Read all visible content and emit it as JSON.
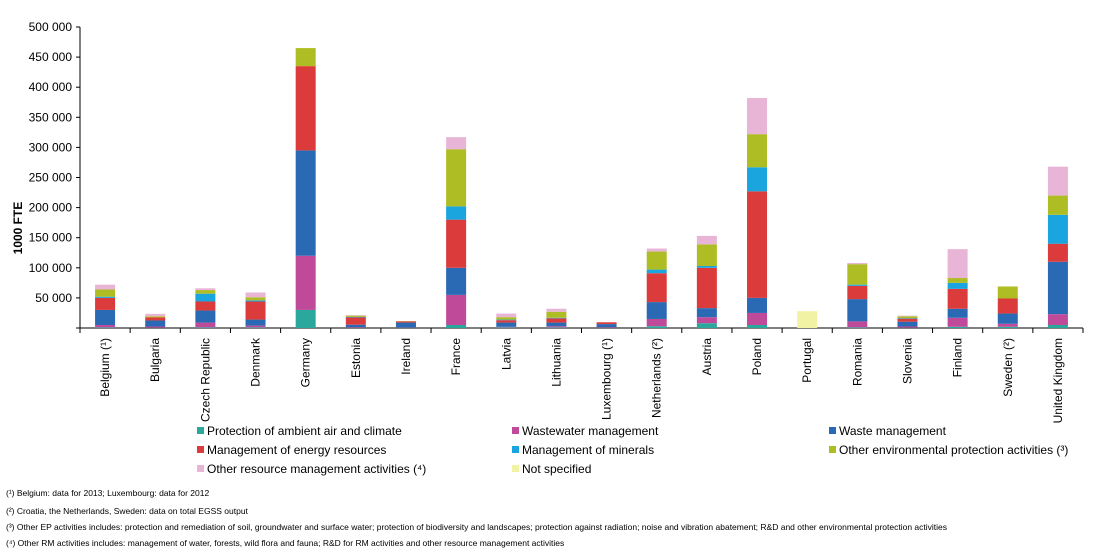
{
  "chart_data": {
    "type": "bar",
    "stacked": true,
    "ylabel": "1000 FTE",
    "ylim": [
      0,
      500000
    ],
    "y_ticks": [
      0,
      50000,
      100000,
      150000,
      200000,
      250000,
      300000,
      350000,
      400000,
      450000,
      500000
    ],
    "y_tick_labels": [
      "",
      "50 000",
      "100 000",
      "150 000",
      "200 000",
      "250 000",
      "300 000",
      "350 000",
      "400 000",
      "450 000",
      "500 000"
    ],
    "grid": false,
    "legend_placement": "bottom",
    "categories": [
      "Belgium (¹)",
      "Bulgaria",
      "Czech Republic",
      "Denmark",
      "Germany",
      "Estonia",
      "Ireland",
      "France",
      "Latvia",
      "Lithuania",
      "Luxembourg (¹)",
      "Netherlands (²)",
      "Austria",
      "Poland",
      "Portugal",
      "Romania",
      "Slovenia",
      "Finland",
      "Sweden (²)",
      "United Kingdom"
    ],
    "series": [
      {
        "name": "Protection of ambient air and climate",
        "color": "#2ba89c",
        "values": [
          1000,
          500,
          1000,
          1000,
          30000,
          500,
          500,
          5000,
          1000,
          1000,
          500,
          3000,
          8000,
          5000,
          0,
          1000,
          500,
          2000,
          2000,
          5000
        ]
      },
      {
        "name": "Wastewater management",
        "color": "#c04a9a",
        "values": [
          4000,
          2000,
          8000,
          3000,
          90000,
          1000,
          500,
          50000,
          1000,
          2000,
          1000,
          12000,
          10000,
          20000,
          0,
          10000,
          2000,
          15000,
          5000,
          18000
        ]
      },
      {
        "name": "Waste management",
        "color": "#2a6ab5",
        "values": [
          25000,
          10000,
          20000,
          10000,
          175000,
          4000,
          8000,
          45000,
          7000,
          6000,
          5000,
          28000,
          15000,
          25000,
          0,
          37000,
          8000,
          15000,
          17000,
          87000
        ]
      },
      {
        "name": "Management of energy resources",
        "color": "#dc3b3c",
        "values": [
          20000,
          5000,
          15000,
          30000,
          140000,
          12000,
          2000,
          80000,
          4000,
          7000,
          3000,
          48000,
          67000,
          177000,
          0,
          22000,
          5000,
          33000,
          25000,
          30000
        ]
      },
      {
        "name": "Management of minerals",
        "color": "#1aa5de",
        "values": [
          2000,
          0,
          13000,
          2000,
          0,
          1000,
          0,
          22000,
          1000,
          1000,
          0,
          6000,
          3000,
          40000,
          0,
          2000,
          1000,
          10000,
          0,
          48000
        ]
      },
      {
        "name": "Other environmental protection activities (³)",
        "color": "#aebd24",
        "values": [
          12000,
          2000,
          6000,
          5000,
          30000,
          2000,
          500,
          95000,
          4000,
          10000,
          0,
          30000,
          36000,
          55000,
          0,
          34000,
          3000,
          8000,
          20000,
          32000
        ]
      },
      {
        "name": "Other resource management activities (⁴)",
        "color": "#e9b5d7",
        "values": [
          8000,
          4000,
          3000,
          8000,
          0,
          1000,
          0,
          20000,
          6000,
          5000,
          0,
          5000,
          14000,
          60000,
          0,
          2000,
          1000,
          48000,
          0,
          48000
        ]
      },
      {
        "name": "Not specified",
        "color": "#f1f2a4",
        "values": [
          0,
          0,
          0,
          0,
          0,
          0,
          0,
          0,
          0,
          0,
          0,
          0,
          0,
          0,
          28000,
          0,
          0,
          0,
          0,
          0
        ]
      }
    ]
  },
  "footnotes": [
    "(¹) Belgium: data for 2013; Luxembourg: data for 2012",
    "(²) Croatia, the Netherlands, Sweden: data on total EGSS output",
    "(³) Other EP activities includes: protection and remediation of soil, groundwater and surface water; protection of biodiversity and landscapes; protection against radiation; noise and vibration abatement; R&D and other environmental protection activities",
    "(⁴) Other RM activities includes: management of water, forests, wild flora and fauna; R&D for RM activities and other resource management activities"
  ]
}
